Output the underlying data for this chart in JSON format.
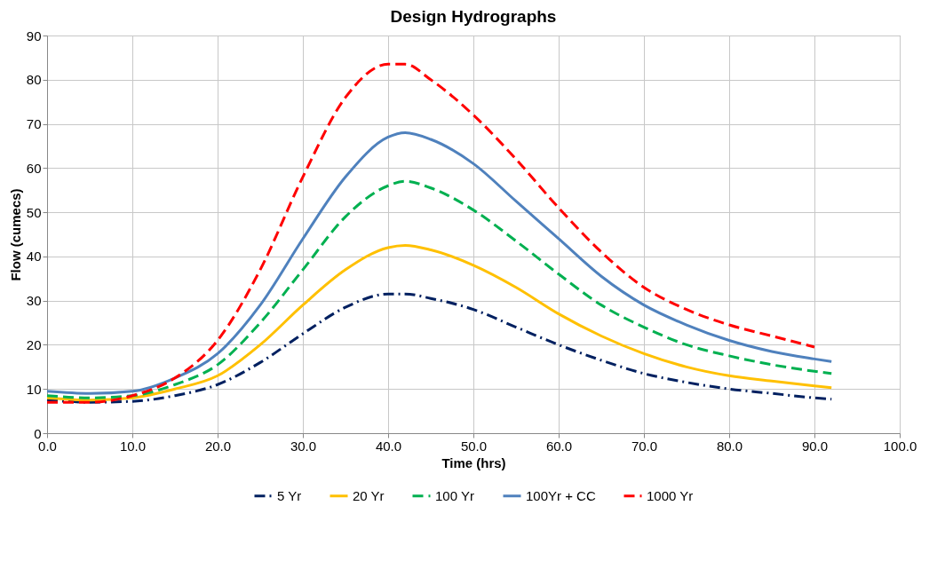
{
  "chart_data": {
    "type": "line",
    "title": "Design Hydrographs",
    "xlabel": "Time (hrs)",
    "ylabel": "Flow (cumecs)",
    "x": [
      0,
      5,
      10,
      15,
      20,
      25,
      30,
      35,
      40,
      42,
      45,
      50,
      55,
      60,
      65,
      70,
      75,
      80,
      85,
      90,
      92
    ],
    "series": [
      {
        "name": "5 Yr",
        "color": "#002060",
        "line_style": "dashdot",
        "values": [
          7.5,
          7,
          7.2,
          8.5,
          11,
          16,
          22.5,
          28.5,
          31.5,
          31.5,
          30.5,
          28,
          24,
          20,
          16.5,
          13.5,
          11.5,
          10,
          9,
          8,
          7.7
        ]
      },
      {
        "name": "20 Yr",
        "color": "#ffc000",
        "line_style": "solid",
        "values": [
          8,
          7.5,
          8,
          10,
          13,
          20,
          29,
          37,
          42,
          42.5,
          41.5,
          38,
          33,
          27,
          22,
          18,
          15,
          13,
          11.8,
          10.7,
          10.3
        ]
      },
      {
        "name": "100 Yr",
        "color": "#00b050",
        "line_style": "dashed",
        "values": [
          8.5,
          8,
          8.5,
          11,
          15.5,
          25,
          37,
          49,
          56,
          57,
          55.5,
          50.5,
          43.5,
          36,
          29,
          24,
          20,
          17.5,
          15.5,
          14,
          13.5
        ]
      },
      {
        "name": "100Yr + CC",
        "color": "#4f81bd",
        "line_style": "solid",
        "values": [
          9.5,
          9,
          9.5,
          12.5,
          18,
          29,
          44,
          58,
          67,
          68,
          66.5,
          61,
          52.5,
          44,
          35.5,
          29,
          24.5,
          21,
          18.5,
          16.8,
          16.2
        ]
      },
      {
        "name": "1000 Yr",
        "color": "#ff0000",
        "line_style": "dashed",
        "values": [
          7,
          7,
          8.5,
          12.5,
          21,
          37,
          58,
          76,
          83.5,
          83.5,
          80,
          72,
          62,
          51,
          41,
          33,
          28,
          24.5,
          22,
          19.5,
          null
        ]
      }
    ],
    "xlim": [
      0,
      100
    ],
    "xticks": [
      {
        "value": 0,
        "label": "0.0"
      },
      {
        "value": 10,
        "label": "10.0"
      },
      {
        "value": 20,
        "label": "20.0"
      },
      {
        "value": 30,
        "label": "30.0"
      },
      {
        "value": 40,
        "label": "40.0"
      },
      {
        "value": 50,
        "label": "50.0"
      },
      {
        "value": 60,
        "label": "60.0"
      },
      {
        "value": 70,
        "label": "70.0"
      },
      {
        "value": 80,
        "label": "80.0"
      },
      {
        "value": 90,
        "label": "90.0"
      },
      {
        "value": 100,
        "label": "100.0"
      }
    ],
    "ylim": [
      0,
      90
    ],
    "yticks": [
      0,
      10,
      20,
      30,
      40,
      50,
      60,
      70,
      80,
      90
    ],
    "grid": true,
    "legend": "bottom",
    "marker": "none"
  }
}
